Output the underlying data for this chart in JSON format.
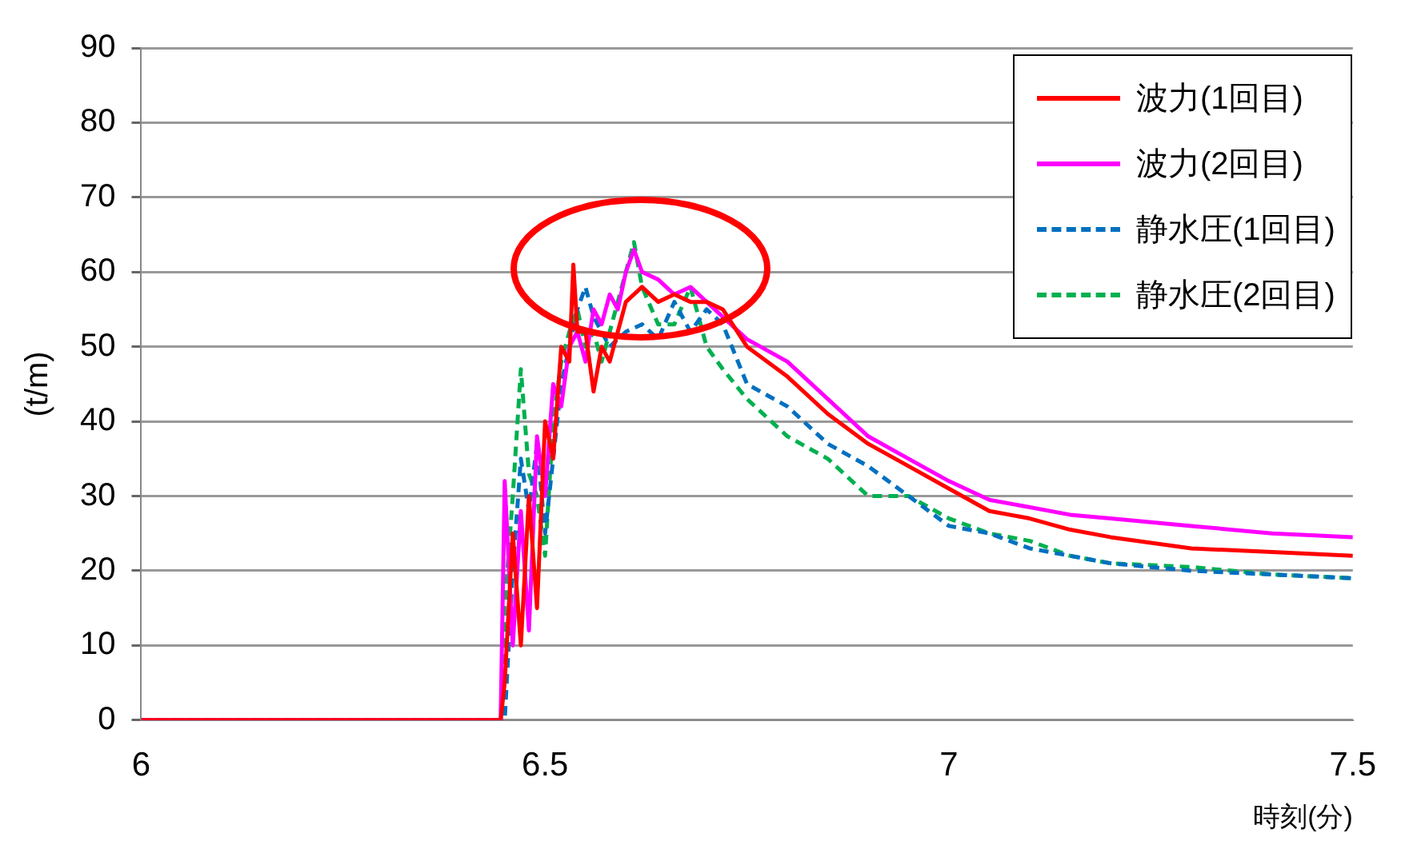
{
  "chart_data": {
    "type": "line",
    "xlabel": "時刻(分)",
    "ylabel": "(t/m)",
    "xlim": [
      6,
      7.5
    ],
    "xticks": [
      6,
      6.5,
      7,
      7.5
    ],
    "ylim": [
      0,
      90
    ],
    "yticks": [
      0,
      10,
      20,
      30,
      40,
      50,
      60,
      70,
      80,
      90
    ],
    "grid": "y",
    "legend": "top right",
    "marker": "none",
    "series": [
      {
        "name": "波力(1回目)",
        "color": "#ff0000",
        "line_style": "solid",
        "x": [
          6,
          6.445,
          6.45,
          6.46,
          6.47,
          6.48,
          6.49,
          6.5,
          6.51,
          6.52,
          6.53,
          6.535,
          6.54,
          6.55,
          6.56,
          6.57,
          6.58,
          6.59,
          6.6,
          6.62,
          6.64,
          6.66,
          6.68,
          6.7,
          6.72,
          6.75,
          6.8,
          6.85,
          6.9,
          6.95,
          7,
          7.05,
          7.1,
          7.15,
          7.2,
          7.3,
          7.4,
          7.5
        ],
        "values": [
          0,
          0,
          5,
          25,
          10,
          30,
          15,
          40,
          35,
          50,
          48,
          61,
          52,
          52,
          44,
          50,
          48,
          52,
          56,
          58,
          56,
          57,
          56,
          56,
          55,
          50,
          46,
          41,
          37,
          34,
          31,
          28,
          27,
          25.5,
          24.5,
          23,
          22.5,
          22
        ]
      },
      {
        "name": "波力(2回目)",
        "color": "#ff00ff",
        "line_style": "solid",
        "x": [
          6,
          6.445,
          6.45,
          6.46,
          6.47,
          6.48,
          6.49,
          6.5,
          6.51,
          6.52,
          6.53,
          6.54,
          6.55,
          6.56,
          6.57,
          6.58,
          6.59,
          6.6,
          6.61,
          6.62,
          6.64,
          6.66,
          6.68,
          6.7,
          6.72,
          6.75,
          6.8,
          6.85,
          6.9,
          6.95,
          7,
          7.05,
          7.1,
          7.15,
          7.2,
          7.3,
          7.4,
          7.5
        ],
        "values": [
          0,
          0,
          32,
          10,
          28,
          12,
          38,
          30,
          45,
          42,
          50,
          52,
          48,
          55,
          53,
          57,
          55,
          60,
          63,
          60,
          59,
          57,
          58,
          56,
          54,
          51,
          48,
          43,
          38,
          35,
          32,
          29.5,
          28.5,
          27.5,
          27,
          26,
          25,
          24.5
        ]
      },
      {
        "name": "静水圧(1回目)",
        "color": "#0070c0",
        "line_style": "dashed",
        "x": [
          6,
          6.45,
          6.46,
          6.47,
          6.48,
          6.49,
          6.5,
          6.51,
          6.52,
          6.53,
          6.54,
          6.55,
          6.56,
          6.57,
          6.58,
          6.6,
          6.62,
          6.64,
          6.66,
          6.68,
          6.7,
          6.72,
          6.75,
          6.8,
          6.85,
          6.9,
          6.95,
          7,
          7.05,
          7.1,
          7.15,
          7.2,
          7.3,
          7.4,
          7.5
        ],
        "values": [
          0,
          0,
          20,
          35,
          28,
          37,
          25,
          35,
          45,
          50,
          55,
          58,
          54,
          52,
          50,
          52,
          53,
          51,
          56,
          52,
          55,
          53,
          45,
          42,
          37,
          34,
          30,
          26,
          25,
          23,
          22,
          21,
          20,
          19.5,
          19
        ]
      },
      {
        "name": "静水圧(2回目)",
        "color": "#00b050",
        "line_style": "dashed",
        "x": [
          6,
          6.445,
          6.45,
          6.46,
          6.47,
          6.48,
          6.49,
          6.5,
          6.51,
          6.52,
          6.53,
          6.54,
          6.55,
          6.56,
          6.57,
          6.58,
          6.59,
          6.6,
          6.61,
          6.62,
          6.64,
          6.66,
          6.68,
          6.7,
          6.72,
          6.75,
          6.8,
          6.85,
          6.9,
          6.95,
          7,
          7.05,
          7.1,
          7.15,
          7.2,
          7.3,
          7.4,
          7.5
        ],
        "values": [
          0,
          0,
          15,
          30,
          47,
          33,
          30,
          22,
          40,
          48,
          52,
          55,
          50,
          52,
          48,
          52,
          56,
          60,
          64,
          58,
          53,
          53,
          58,
          50,
          47,
          43,
          38,
          35,
          30,
          30,
          27,
          25,
          24,
          22,
          21,
          20.5,
          19.5,
          19
        ]
      }
    ]
  }
}
